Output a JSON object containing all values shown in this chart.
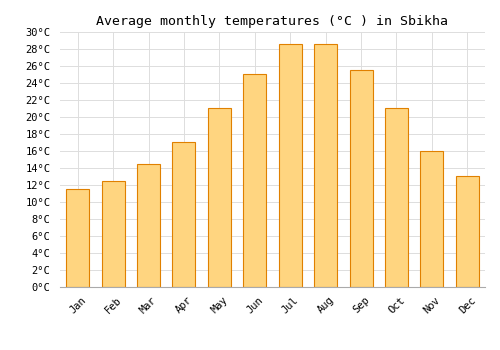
{
  "title": "Average monthly temperatures (°C ) in Sbikha",
  "months": [
    "Jan",
    "Feb",
    "Mar",
    "Apr",
    "May",
    "Jun",
    "Jul",
    "Aug",
    "Sep",
    "Oct",
    "Nov",
    "Dec"
  ],
  "temperatures": [
    11.5,
    12.5,
    14.5,
    17.0,
    21.0,
    25.0,
    28.5,
    28.5,
    25.5,
    21.0,
    16.0,
    13.0
  ],
  "bar_color_top": "#FFA500",
  "bar_color_bottom": "#FFD580",
  "bar_edge_color": "#E08000",
  "ylim": [
    0,
    30
  ],
  "ytick_step": 2,
  "background_color": "#ffffff",
  "grid_color": "#dddddd",
  "title_fontsize": 9.5,
  "tick_fontsize": 7.5,
  "font_family": "monospace"
}
